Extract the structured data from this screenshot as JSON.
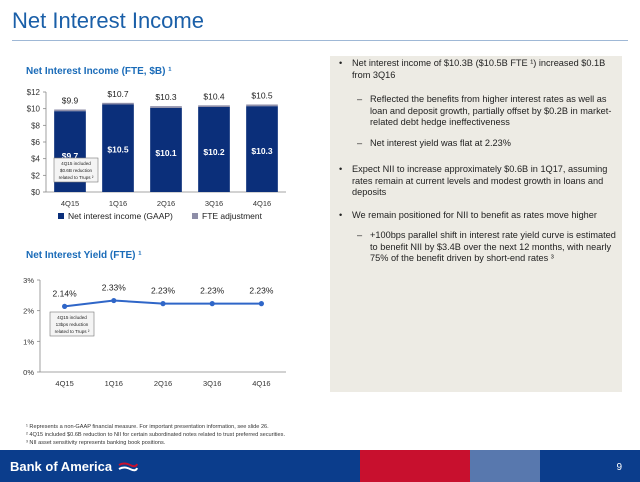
{
  "page": {
    "title": "Net Interest Income",
    "page_number": "9",
    "logo_text": "Bank of America"
  },
  "chart1": {
    "title": "Net Interest Income (FTE, $B) ¹",
    "annotation": [
      "4Q15 included",
      "$0.6B reduction",
      "related to Trups ²"
    ]
  },
  "chart2": {
    "title": "Net Interest Yield (FTE) ¹",
    "annotation": [
      "4Q15 included",
      "13bps reduction",
      "related to Trups ²"
    ]
  },
  "chart_data": [
    {
      "type": "bar",
      "title": "Net Interest Income (FTE, $B) ¹",
      "categories": [
        "4Q15",
        "1Q16",
        "2Q16",
        "3Q16",
        "4Q16"
      ],
      "series": [
        {
          "name": "Net interest income (GAAP)",
          "values": [
            9.7,
            10.5,
            10.1,
            10.2,
            10.3
          ],
          "labels": [
            "$9.7",
            "$10.5",
            "$10.1",
            "$10.2",
            "$10.3"
          ],
          "color": "#0b2f7a"
        },
        {
          "name": "FTE adjustment",
          "values": [
            0.2,
            0.2,
            0.2,
            0.2,
            0.2
          ],
          "color": "#8e8ea8"
        }
      ],
      "totals": [
        9.9,
        10.7,
        10.3,
        10.4,
        10.5
      ],
      "total_labels": [
        "$9.9",
        "$10.7",
        "$10.3",
        "$10.4",
        "$10.5"
      ],
      "yticks": [
        "$0",
        "$2",
        "$4",
        "$6",
        "$8",
        "$10",
        "$12"
      ],
      "ylim": [
        0,
        12
      ],
      "grid": false,
      "legend": "bottom"
    },
    {
      "type": "line",
      "title": "Net Interest Yield (FTE) ¹",
      "categories": [
        "4Q15",
        "1Q16",
        "2Q16",
        "3Q16",
        "4Q16"
      ],
      "values": [
        2.14,
        2.33,
        2.23,
        2.23,
        2.23
      ],
      "labels": [
        "2.14%",
        "2.33%",
        "2.23%",
        "2.23%",
        "2.23%"
      ],
      "yticks": [
        "0%",
        "1%",
        "2%",
        "3%"
      ],
      "ylim": [
        0,
        3
      ],
      "color": "#2f66c8",
      "grid": false
    }
  ],
  "bullets": [
    {
      "level": 1,
      "mark": "•",
      "lines": [
        "Net interest income of $10.3B ($10.5B FTE ¹) increased $0.1B",
        "from 3Q16"
      ]
    },
    {
      "level": 2,
      "mark": "–",
      "lines": [
        "Reflected the benefits from higher interest rates as well as",
        "loan and deposit growth, partially offset by $0.2B in market-",
        "related debt hedge ineffectiveness"
      ]
    },
    {
      "level": 2,
      "mark": "–",
      "lines": [
        "Net interest yield was flat at 2.23%"
      ]
    },
    {
      "level": 1,
      "mark": "•",
      "lines": [
        "Expect NII to increase approximately $0.6B in 1Q17, assuming",
        "rates remain at current levels and modest growth in loans and",
        "deposits"
      ]
    },
    {
      "level": 1,
      "mark": "•",
      "lines": [
        "We remain positioned for NII to benefit as rates move higher"
      ]
    },
    {
      "level": 2,
      "mark": "–",
      "lines": [
        "+100bps parallel shift in interest rate yield curve is estimated",
        "to benefit NII by $3.4B over the next 12 months, with nearly",
        "75% of the benefit driven by short-end rates ³"
      ]
    }
  ],
  "footnotes": [
    "¹ Represents a non-GAAP financial measure. For important presentation information, see slide 26.",
    "² 4Q15 included $0.6B reduction to NII for certain subordinated notes related to trust preferred securities.",
    "³ NII asset sensitivity represents banking book positions."
  ],
  "colors": {
    "accent": "#1a6bb8",
    "navy": "#0b2f7a",
    "fte": "#8e8ea8",
    "footer": "#0b3d8c",
    "panel": "#edebe4",
    "red": "#c8102e"
  }
}
